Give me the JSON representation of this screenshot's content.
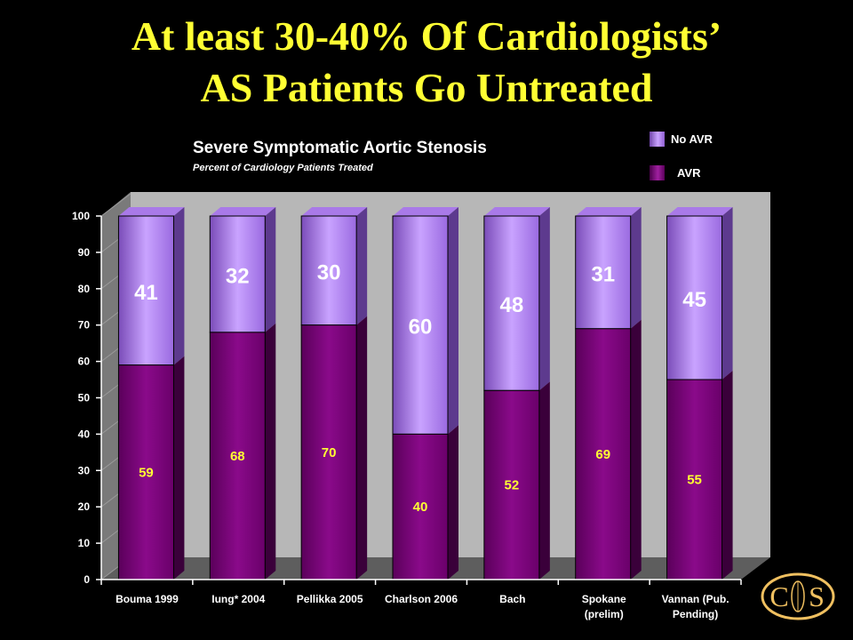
{
  "slide": {
    "title_line1": "At least 30-40% Of Cardiologists’",
    "title_line2": "AS Patients Go Untreated",
    "logo_letters": [
      "C",
      "S"
    ]
  },
  "legend": [
    {
      "label": "No AVR",
      "color": "#b27cf0"
    },
    {
      "label": "AVR",
      "color": "#800080"
    }
  ],
  "colors": {
    "no_avr": "#b27cf0",
    "avr": "#800080",
    "axis": "#ffffff",
    "label_yellow": "#ffff33",
    "logo": "#f0c060"
  },
  "chart_data": {
    "type": "bar",
    "stacked": true,
    "title": "Severe Symptomatic Aortic Stenosis",
    "subtitle": "Percent of Cardiology Patients Treated",
    "categories": [
      [
        "Bouma 1999"
      ],
      [
        "Iung*  2004"
      ],
      [
        "Pellikka 2005"
      ],
      [
        "Charlson 2006"
      ],
      [
        "Bach"
      ],
      [
        "Spokane",
        "(prelim)"
      ],
      [
        "Vannan (Pub.",
        "Pending)"
      ]
    ],
    "series": [
      {
        "name": "AVR",
        "values": [
          59,
          68,
          70,
          40,
          52,
          69,
          55
        ]
      },
      {
        "name": "No AVR",
        "values": [
          41,
          32,
          30,
          60,
          48,
          31,
          45
        ]
      }
    ],
    "ylim": [
      0,
      100
    ],
    "yticks": [
      0,
      10,
      20,
      30,
      40,
      50,
      60,
      70,
      80,
      90,
      100
    ],
    "legend_position": "top-right",
    "grid": false
  }
}
